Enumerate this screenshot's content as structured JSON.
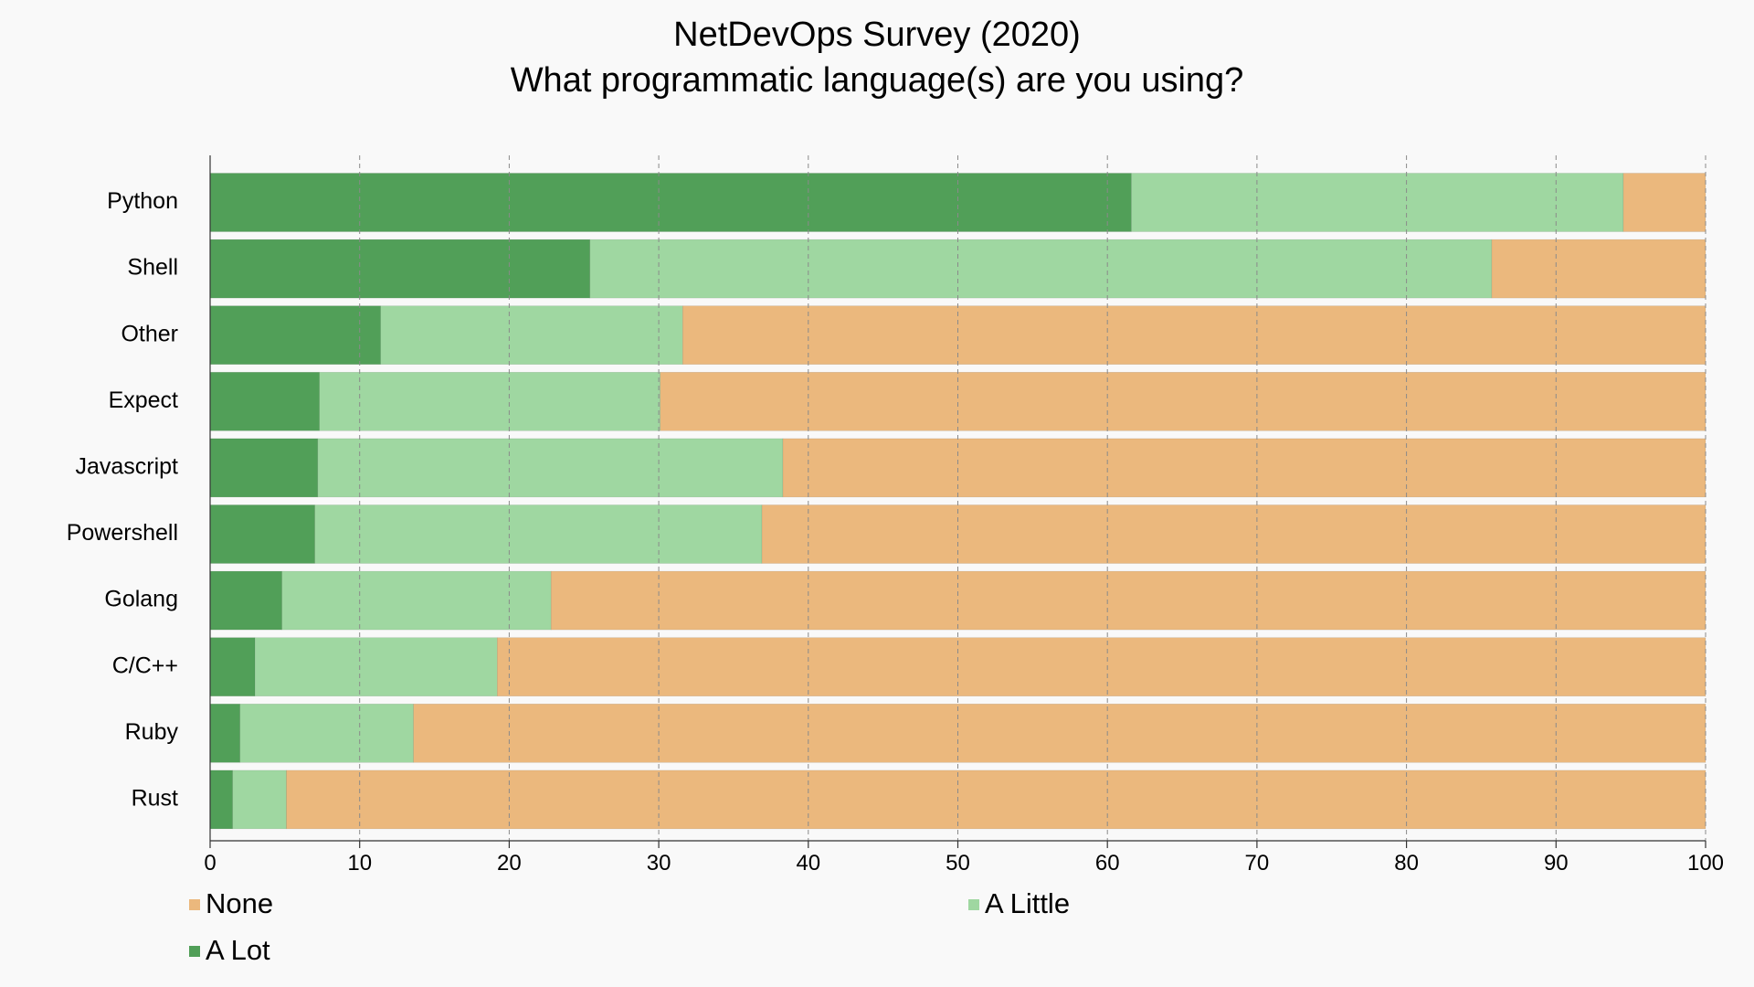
{
  "chart_data": {
    "type": "bar",
    "orientation": "horizontal",
    "stacked": true,
    "title": "NetDevOps Survey (2020)",
    "subtitle": "What programmatic language(s) are you using?",
    "xlabel": "",
    "ylabel": "",
    "xlim": [
      0,
      100
    ],
    "xticks": [
      0,
      10,
      20,
      30,
      40,
      50,
      60,
      70,
      80,
      90,
      100
    ],
    "grid": true,
    "legend_position": "bottom-left",
    "categories": [
      "Python",
      "Shell",
      "Other",
      "Expect",
      "Javascript",
      "Powershell",
      "Golang",
      "C/C++",
      "Ruby",
      "Rust"
    ],
    "series": [
      {
        "name": "A Lot",
        "color": "#519f58",
        "values": [
          61.6,
          25.4,
          11.4,
          7.3,
          7.2,
          7.0,
          4.8,
          3.0,
          2.0,
          1.5
        ]
      },
      {
        "name": "A Little",
        "color": "#9fd7a1",
        "values": [
          32.9,
          60.3,
          20.2,
          22.8,
          31.1,
          29.9,
          18.0,
          16.2,
          11.6,
          3.6
        ]
      },
      {
        "name": "None",
        "color": "#ebb87d",
        "values": [
          5.5,
          14.3,
          68.4,
          69.9,
          61.7,
          63.1,
          77.2,
          80.8,
          86.4,
          94.9
        ]
      }
    ],
    "legend_order": [
      "None",
      "A Little",
      "A Lot"
    ]
  }
}
